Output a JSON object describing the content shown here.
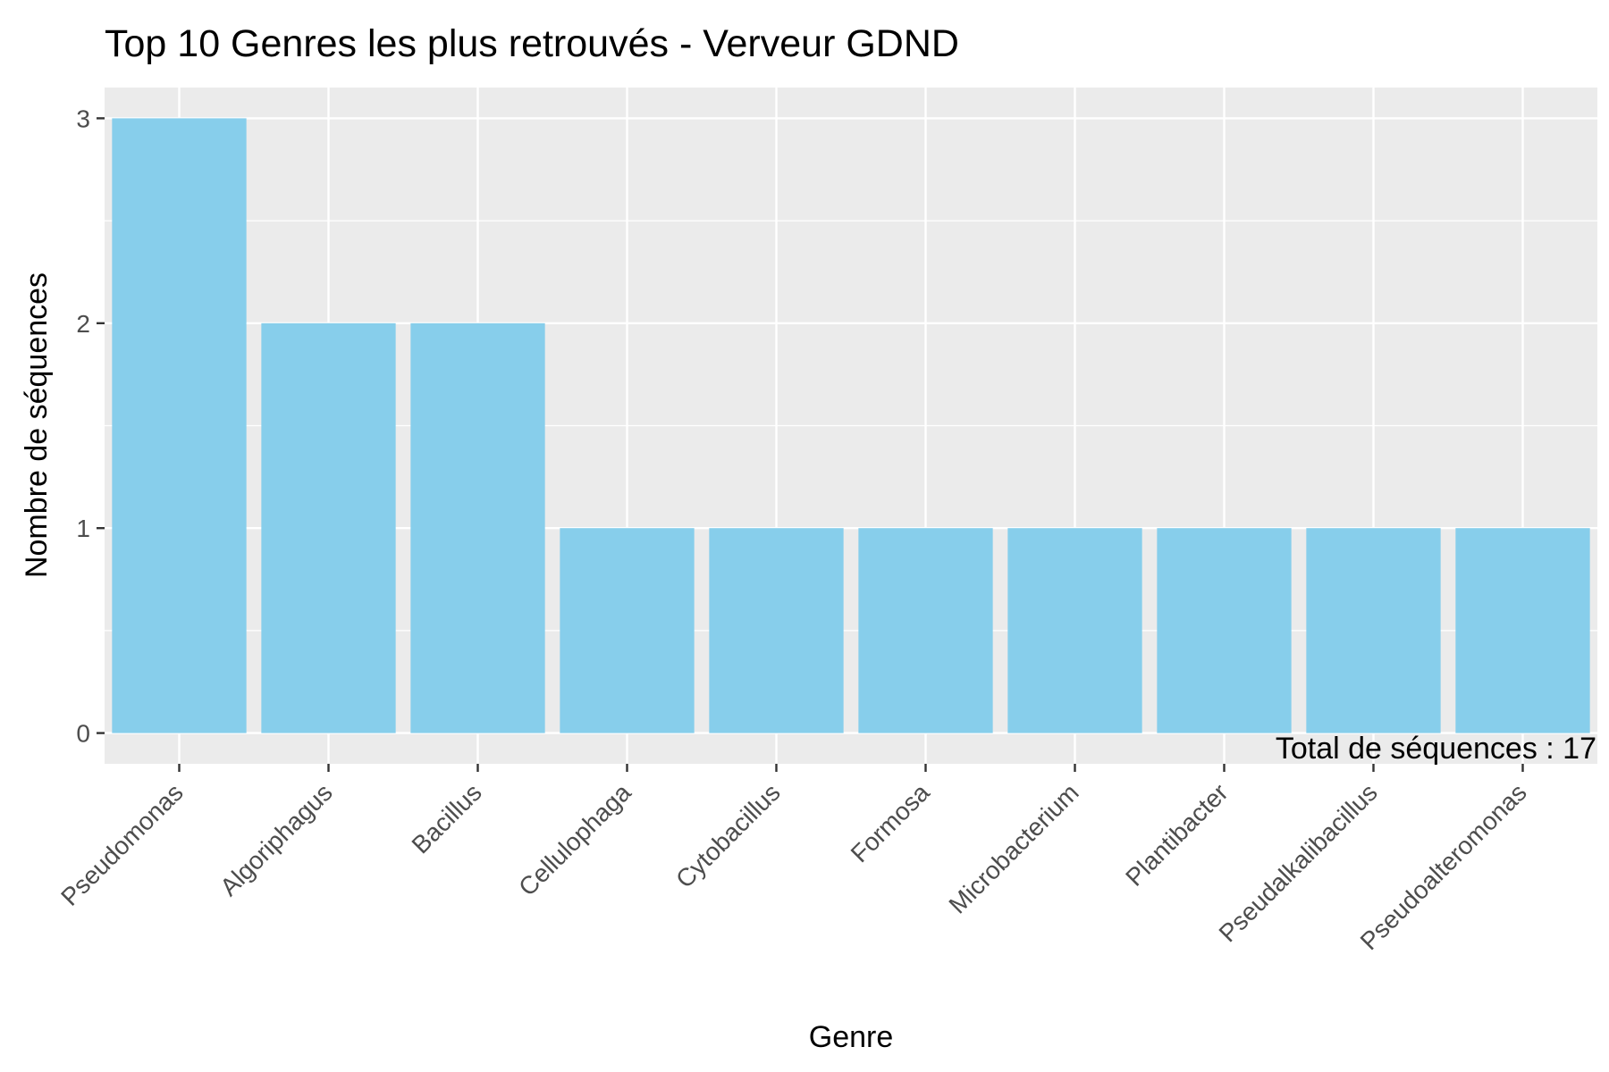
{
  "chart_data": {
    "type": "bar",
    "title": "Top 10 Genres les plus retrouvés - Verveur GDND",
    "xlabel": "Genre",
    "ylabel": "Nombre de séquences",
    "categories": [
      "Pseudomonas",
      "Algoriphagus",
      "Bacillus",
      "Cellulophaga",
      "Cytobacillus",
      "Formosa",
      "Microbacterium",
      "Plantibacter",
      "Pseudalkalibacillus",
      "Pseudoalteromonas"
    ],
    "values": [
      3,
      2,
      2,
      1,
      1,
      1,
      1,
      1,
      1,
      1
    ],
    "ylim": [
      -0.15,
      3.15
    ],
    "yticks": [
      0,
      1,
      2,
      3
    ],
    "grid": true,
    "annotation": "Total de séquences : 17",
    "colors": {
      "bar": "#87CEEB",
      "panel": "#EBEBEB",
      "grid": "#FFFFFF"
    }
  }
}
